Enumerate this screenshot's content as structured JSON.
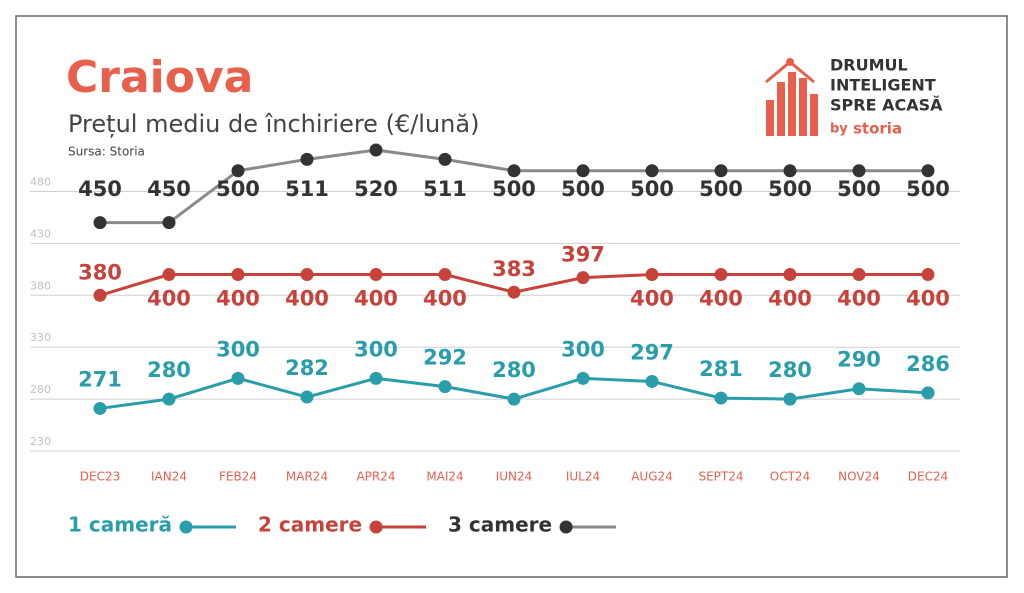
{
  "chart_data": {
    "type": "line",
    "title": "Craiova",
    "subtitle": "Prețul mediu de închiriere (€/lună)",
    "source": "Sursa: Storia",
    "logo": {
      "line1": "DRUMUL",
      "line2": "INTELIGENT",
      "line3": "SPRE ACASĂ",
      "by": "by",
      "brand": "storia"
    },
    "categories": [
      "DEC23",
      "IAN24",
      "FEB24",
      "MAR24",
      "APR24",
      "MAI24",
      "IUN24",
      "IUL24",
      "AUG24",
      "SEPT24",
      "OCT24",
      "NOV24",
      "DEC24"
    ],
    "series": [
      {
        "name": "1 cameră",
        "color": "#2a9dab",
        "values": [
          271,
          280,
          300,
          282,
          300,
          292,
          280,
          300,
          297,
          281,
          280,
          290,
          286
        ]
      },
      {
        "name": "2 camere",
        "color": "#c6423a",
        "values": [
          380,
          400,
          400,
          400,
          400,
          400,
          383,
          397,
          400,
          400,
          400,
          400,
          400
        ]
      },
      {
        "name": "3 camere",
        "color": "#8a8a8a",
        "values": [
          450,
          450,
          500,
          511,
          520,
          511,
          500,
          500,
          500,
          500,
          500,
          500,
          500
        ]
      }
    ],
    "ylim": [
      230,
      520
    ],
    "yticks": [
      230,
      280,
      330,
      380,
      430,
      480
    ],
    "grid": true
  }
}
